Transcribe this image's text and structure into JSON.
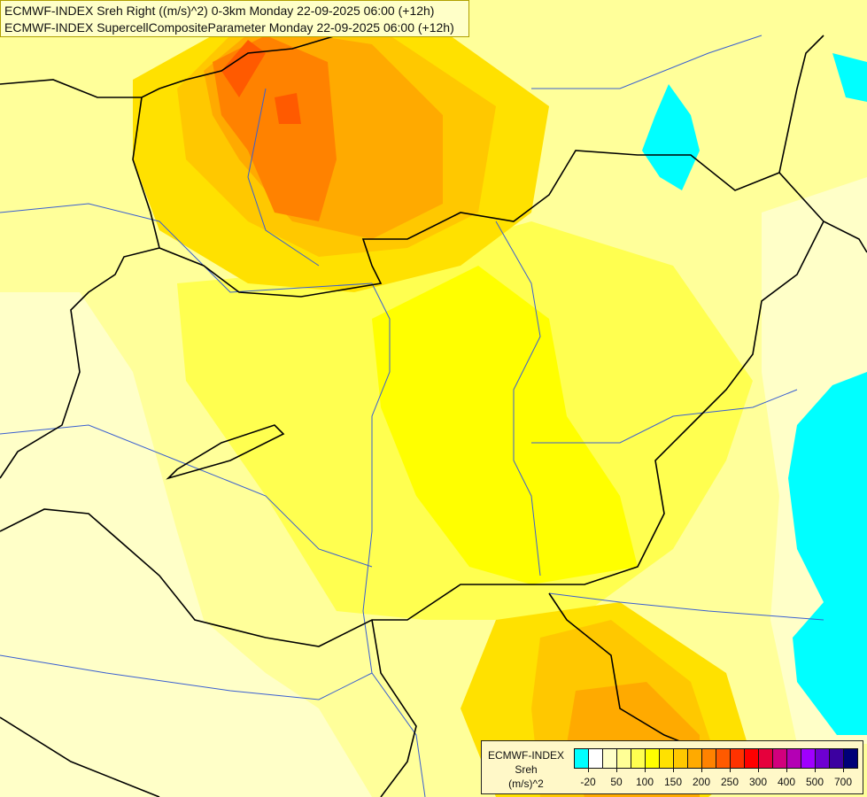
{
  "title": {
    "line1": "ECMWF-INDEX Sreh Right ((m/s)^2) 0-3km Monday 22-09-2025 06:00 (+12h)",
    "line2": "ECMWF-INDEX SupercellCompositeParameter Monday 22-09-2025 06:00 (+12h)"
  },
  "legend": {
    "name_line1": "ECMWF-INDEX",
    "name_line2": "Sreh",
    "name_line3": "(m/s)^2",
    "colors": [
      "#00ffff",
      "#ffffff",
      "#ffffc8",
      "#ffff96",
      "#ffff50",
      "#ffff00",
      "#ffe100",
      "#ffc800",
      "#ffaa00",
      "#ff8200",
      "#ff5a00",
      "#ff3200",
      "#ff0000",
      "#e6003c",
      "#d2007d",
      "#b400b4",
      "#a000ff",
      "#6e00d2",
      "#3c00a0",
      "#000078"
    ],
    "labels": [
      "-20",
      "50",
      "100",
      "150",
      "200",
      "250",
      "300",
      "400",
      "500",
      "700"
    ]
  },
  "map_colors": {
    "border": "#000000",
    "river": "#3a5fd0",
    "negative": "#00ffff"
  }
}
